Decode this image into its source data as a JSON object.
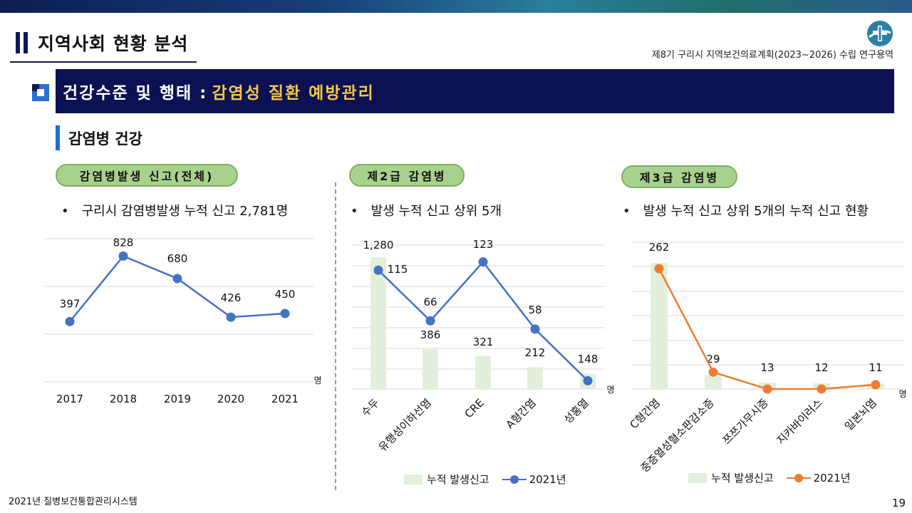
{
  "header": {
    "section_title": "지역사회 현황 분석",
    "subtitle": "제8기 구리시 지역보건의료계획(2023~2026) 수립 연구용역",
    "logo_icon": "cross-emblem-icon"
  },
  "banner": {
    "part1": "건강수준 및 행태 :",
    "part2": "감염성 질환 예방관리"
  },
  "heading": "감염병 건강",
  "panels": [
    {
      "pill": "감염병발생 신고(전체)",
      "bullet": "구리시 감염병발생 누적 신고 2,781명"
    },
    {
      "pill": "제2급 감염병",
      "bullet": "발생 누적 신고 상위 5개"
    },
    {
      "pill": "제3급 감염병",
      "bullet": "발생 누적 신고 상위 5개의 누적 신고 현황"
    }
  ],
  "legend": {
    "bar": "누적 발생신고",
    "line": "2021년"
  },
  "footer": "2021년 질병보건통합관리시스템",
  "page_number": "19",
  "colors": {
    "blue_line": "#4472c4",
    "orange_line": "#ed7d31",
    "bar_fill": "#e2efda"
  },
  "chart_data": [
    {
      "type": "line",
      "categories": [
        "2017",
        "2018",
        "2019",
        "2020",
        "2021"
      ],
      "series": [
        {
          "values": [
            397,
            828,
            680,
            426,
            450
          ],
          "labels": [
            "397",
            "828",
            "680",
            "426",
            "450"
          ]
        }
      ],
      "unit": "명",
      "ylim": [
        0,
        900
      ],
      "grid": true
    },
    {
      "type": "bar+line",
      "categories": [
        "수두",
        "유행성이하선염",
        "CRE",
        "A형간염",
        "성홍열"
      ],
      "series": [
        {
          "name": "누적 발생신고",
          "type": "bar",
          "values": [
            1280,
            386,
            321,
            212,
            148
          ],
          "labels": [
            "1,280",
            "386",
            "321",
            "212",
            "148"
          ]
        },
        {
          "name": "2021년",
          "type": "line",
          "values": [
            115,
            66,
            123,
            58,
            8
          ],
          "labels": [
            "115",
            "66",
            "123",
            "58",
            ""
          ]
        }
      ],
      "unit": "명",
      "grid": true
    },
    {
      "type": "bar+line",
      "categories": [
        "C형간염",
        "중증열성혈소판감소증",
        "쯔쯔가무시증",
        "지카바이러스",
        "일본뇌염"
      ],
      "series": [
        {
          "name": "누적 발생신고",
          "type": "bar",
          "values": [
            262,
            29,
            13,
            12,
            11
          ],
          "labels": [
            "262",
            "29",
            "13",
            "12",
            "11"
          ]
        },
        {
          "name": "2021년",
          "type": "line",
          "values": [
            250,
            35,
            0,
            0,
            9
          ],
          "labels": [
            "",
            "",
            "",
            "",
            ""
          ]
        }
      ],
      "unit": "명",
      "grid": true
    }
  ]
}
